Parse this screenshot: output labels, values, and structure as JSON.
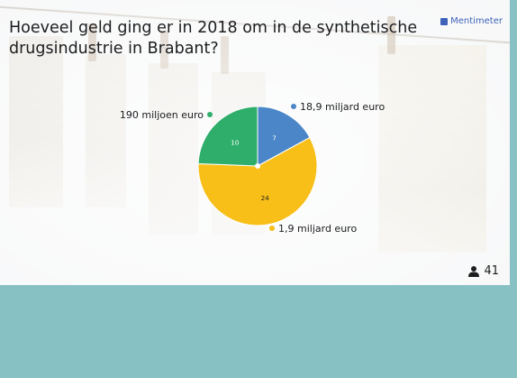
{
  "slide": {
    "question": "Hoeveel geld ging er in 2018 om in de synthetische drugsindustrie in Brabant?",
    "brand": "Mentimeter",
    "respondent_count": "41"
  },
  "colors": {
    "background": "#87c1c3",
    "blue": "#4a86c8",
    "yellow": "#f8bf19",
    "green": "#2fae6b"
  },
  "icons": {
    "brand": "mentimeter-logo-icon",
    "respondents": "person-icon"
  },
  "chart_data": {
    "type": "pie",
    "start": "top",
    "direction": "clockwise",
    "slices": [
      {
        "label": "18,9 miljard euro",
        "value": 7,
        "color": "#4a86c8"
      },
      {
        "label": "1,9 miljard euro",
        "value": 24,
        "color": "#f8bf19"
      },
      {
        "label": "190 miljoen euro",
        "value": 10,
        "color": "#2fae6b"
      }
    ]
  }
}
